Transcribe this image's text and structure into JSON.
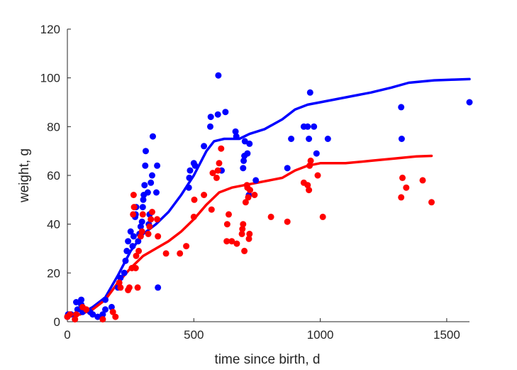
{
  "chart_data": {
    "type": "scatter",
    "xlabel": "time since birth, d",
    "ylabel": "weight, g",
    "xlim": [
      0,
      1590
    ],
    "ylim": [
      0,
      120
    ],
    "xticks": [
      0,
      500,
      1000,
      1500
    ],
    "yticks": [
      0,
      20,
      40,
      60,
      80,
      100,
      120
    ],
    "grid": false,
    "legend": "none",
    "series": [
      {
        "kind": "points",
        "color": "#0000ff",
        "points": [
          [
            0,
            2
          ],
          [
            3,
            3
          ],
          [
            15,
            3
          ],
          [
            35,
            8
          ],
          [
            40,
            5
          ],
          [
            55,
            7
          ],
          [
            55,
            9
          ],
          [
            60,
            4
          ],
          [
            70,
            5
          ],
          [
            90,
            4
          ],
          [
            100,
            3
          ],
          [
            120,
            2
          ],
          [
            140,
            3
          ],
          [
            150,
            9
          ],
          [
            150,
            5
          ],
          [
            175,
            6
          ],
          [
            200,
            14
          ],
          [
            210,
            18
          ],
          [
            225,
            20
          ],
          [
            230,
            25
          ],
          [
            235,
            29
          ],
          [
            240,
            33
          ],
          [
            250,
            37
          ],
          [
            258,
            31
          ],
          [
            262,
            35
          ],
          [
            268,
            43
          ],
          [
            270,
            44
          ],
          [
            272,
            47
          ],
          [
            280,
            33
          ],
          [
            285,
            36
          ],
          [
            290,
            39
          ],
          [
            295,
            41
          ],
          [
            298,
            47
          ],
          [
            300,
            50
          ],
          [
            302,
            52
          ],
          [
            305,
            56
          ],
          [
            308,
            64
          ],
          [
            310,
            70
          ],
          [
            318,
            53
          ],
          [
            322,
            40
          ],
          [
            325,
            44
          ],
          [
            330,
            57
          ],
          [
            335,
            60
          ],
          [
            338,
            76
          ],
          [
            352,
            53
          ],
          [
            355,
            64
          ],
          [
            358,
            14
          ],
          [
            480,
            55
          ],
          [
            482,
            59
          ],
          [
            485,
            62
          ],
          [
            500,
            65
          ],
          [
            505,
            64
          ],
          [
            540,
            72
          ],
          [
            565,
            80
          ],
          [
            567,
            84
          ],
          [
            595,
            85
          ],
          [
            597,
            101
          ],
          [
            610,
            62
          ],
          [
            625,
            86
          ],
          [
            665,
            78
          ],
          [
            668,
            76
          ],
          [
            695,
            63
          ],
          [
            697,
            66
          ],
          [
            700,
            68
          ],
          [
            702,
            74
          ],
          [
            712,
            69
          ],
          [
            718,
            52
          ],
          [
            720,
            73
          ],
          [
            745,
            58
          ],
          [
            870,
            63
          ],
          [
            885,
            75
          ],
          [
            935,
            80
          ],
          [
            950,
            80
          ],
          [
            955,
            75
          ],
          [
            960,
            94
          ],
          [
            975,
            80
          ],
          [
            985,
            69
          ],
          [
            1030,
            75
          ],
          [
            1320,
            88
          ],
          [
            1322,
            75
          ],
          [
            1590,
            90
          ]
        ]
      },
      {
        "kind": "points",
        "color": "#ff0000",
        "points": [
          [
            0,
            2
          ],
          [
            10,
            3
          ],
          [
            30,
            1
          ],
          [
            35,
            3
          ],
          [
            60,
            6
          ],
          [
            75,
            5
          ],
          [
            140,
            1
          ],
          [
            180,
            4
          ],
          [
            190,
            2
          ],
          [
            205,
            16
          ],
          [
            210,
            14
          ],
          [
            240,
            13
          ],
          [
            245,
            14
          ],
          [
            255,
            22
          ],
          [
            260,
            44
          ],
          [
            262,
            52
          ],
          [
            264,
            47
          ],
          [
            270,
            22
          ],
          [
            272,
            27
          ],
          [
            278,
            14
          ],
          [
            282,
            29
          ],
          [
            290,
            35
          ],
          [
            295,
            37
          ],
          [
            298,
            44
          ],
          [
            320,
            36
          ],
          [
            325,
            39
          ],
          [
            330,
            42
          ],
          [
            335,
            45
          ],
          [
            355,
            42
          ],
          [
            358,
            35
          ],
          [
            390,
            28
          ],
          [
            445,
            28
          ],
          [
            470,
            31
          ],
          [
            500,
            43
          ],
          [
            502,
            50
          ],
          [
            540,
            52
          ],
          [
            570,
            46
          ],
          [
            575,
            61
          ],
          [
            590,
            59
          ],
          [
            595,
            62
          ],
          [
            600,
            65
          ],
          [
            608,
            71
          ],
          [
            630,
            33
          ],
          [
            632,
            40
          ],
          [
            638,
            44
          ],
          [
            650,
            33
          ],
          [
            670,
            32
          ],
          [
            690,
            36
          ],
          [
            692,
            38
          ],
          [
            695,
            40
          ],
          [
            700,
            29
          ],
          [
            705,
            49
          ],
          [
            710,
            56
          ],
          [
            712,
            55
          ],
          [
            715,
            51
          ],
          [
            718,
            34
          ],
          [
            720,
            36
          ],
          [
            722,
            54
          ],
          [
            740,
            52
          ],
          [
            805,
            43
          ],
          [
            870,
            41
          ],
          [
            935,
            57
          ],
          [
            950,
            56
          ],
          [
            955,
            54
          ],
          [
            958,
            64
          ],
          [
            962,
            66
          ],
          [
            990,
            60
          ],
          [
            1010,
            43
          ],
          [
            1320,
            51
          ],
          [
            1325,
            59
          ],
          [
            1340,
            55
          ],
          [
            1405,
            58
          ],
          [
            1440,
            49
          ]
        ]
      },
      {
        "kind": "curve",
        "color": "#0000ff",
        "points": [
          [
            0,
            3
          ],
          [
            50,
            3
          ],
          [
            100,
            6
          ],
          [
            150,
            10
          ],
          [
            200,
            19
          ],
          [
            250,
            29
          ],
          [
            300,
            36
          ],
          [
            350,
            40
          ],
          [
            400,
            45
          ],
          [
            450,
            52
          ],
          [
            500,
            60
          ],
          [
            550,
            70
          ],
          [
            580,
            74
          ],
          [
            620,
            75
          ],
          [
            680,
            75
          ],
          [
            720,
            77
          ],
          [
            780,
            79
          ],
          [
            850,
            83
          ],
          [
            900,
            87
          ],
          [
            950,
            89
          ],
          [
            1000,
            90
          ],
          [
            1100,
            92
          ],
          [
            1200,
            94
          ],
          [
            1280,
            96
          ],
          [
            1350,
            98
          ],
          [
            1450,
            99
          ],
          [
            1530,
            99.3
          ],
          [
            1590,
            99.5
          ]
        ]
      },
      {
        "kind": "curve",
        "color": "#ff0000",
        "points": [
          [
            0,
            2
          ],
          [
            50,
            3
          ],
          [
            100,
            5
          ],
          [
            150,
            9
          ],
          [
            200,
            16
          ],
          [
            250,
            22
          ],
          [
            300,
            27
          ],
          [
            350,
            30
          ],
          [
            400,
            33
          ],
          [
            450,
            37
          ],
          [
            500,
            42
          ],
          [
            550,
            48
          ],
          [
            600,
            53
          ],
          [
            650,
            55
          ],
          [
            700,
            56
          ],
          [
            750,
            57
          ],
          [
            800,
            58
          ],
          [
            850,
            59
          ],
          [
            900,
            62
          ],
          [
            950,
            64
          ],
          [
            1000,
            65
          ],
          [
            1100,
            65
          ],
          [
            1200,
            66
          ],
          [
            1300,
            67
          ],
          [
            1380,
            67.8
          ],
          [
            1440,
            68
          ]
        ]
      }
    ]
  }
}
